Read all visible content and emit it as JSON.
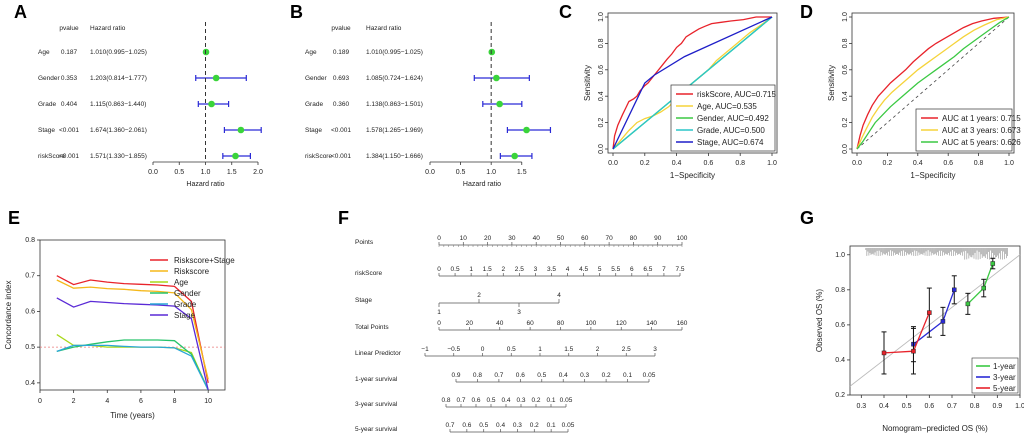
{
  "panel_letters": [
    "A",
    "B",
    "C",
    "D",
    "E",
    "F",
    "G"
  ],
  "chart_data": [
    {
      "id": "A",
      "type": "forest",
      "header_p": "pvalue",
      "header_hr": "Hazard ratio",
      "xlabel": "Hazard ratio",
      "xlim": [
        0,
        2.0
      ],
      "ticks": [
        "0.0",
        "0.5",
        "1.0",
        "1.5",
        "2.0"
      ],
      "rows": [
        {
          "label": "Age",
          "p": "0.187",
          "text": "1.010(0.995−1.025)",
          "hr": 1.01,
          "lo": 0.995,
          "hi": 1.025
        },
        {
          "label": "Gender",
          "p": "0.353",
          "text": "1.203(0.814−1.777)",
          "hr": 1.203,
          "lo": 0.814,
          "hi": 1.777
        },
        {
          "label": "Grade",
          "p": "0.404",
          "text": "1.115(0.863−1.440)",
          "hr": 1.115,
          "lo": 0.863,
          "hi": 1.44
        },
        {
          "label": "Stage",
          "p": "<0.001",
          "text": "1.674(1.360−2.061)",
          "hr": 1.674,
          "lo": 1.36,
          "hi": 2.061
        },
        {
          "label": "riskScore",
          "p": "<0.001",
          "text": "1.571(1.330−1.855)",
          "hr": 1.571,
          "lo": 1.33,
          "hi": 1.855
        }
      ]
    },
    {
      "id": "B",
      "type": "forest",
      "header_p": "pvalue",
      "header_hr": "Hazard ratio",
      "xlabel": "Hazard ratio",
      "xlim": [
        0,
        1.7
      ],
      "ticks": [
        "0.0",
        "0.5",
        "1.0",
        "1.5"
      ],
      "rows": [
        {
          "label": "Age",
          "p": "0.189",
          "text": "1.010(0.995−1.025)",
          "hr": 1.01,
          "lo": 0.995,
          "hi": 1.025
        },
        {
          "label": "Gender",
          "p": "0.693",
          "text": "1.085(0.724−1.624)",
          "hr": 1.085,
          "lo": 0.724,
          "hi": 1.624
        },
        {
          "label": "Grade",
          "p": "0.360",
          "text": "1.138(0.863−1.501)",
          "hr": 1.138,
          "lo": 0.863,
          "hi": 1.501
        },
        {
          "label": "Stage",
          "p": "<0.001",
          "text": "1.578(1.265−1.969)",
          "hr": 1.578,
          "lo": 1.265,
          "hi": 1.969
        },
        {
          "label": "riskScore",
          "p": "<0.001",
          "text": "1.384(1.150−1.666)",
          "hr": 1.384,
          "lo": 1.15,
          "hi": 1.666
        }
      ]
    },
    {
      "id": "C",
      "type": "line",
      "subtype": "roc",
      "xlabel": "1−Specificity",
      "ylabel": "Sensitivity",
      "xlim": [
        0,
        1
      ],
      "ylim": [
        0,
        1
      ],
      "ticks": [
        "0.0",
        "0.2",
        "0.4",
        "0.6",
        "0.8",
        "1.0"
      ],
      "legend_position": "bottom-right",
      "series": [
        {
          "name": "riskScore, AUC=0.715",
          "color": "#e8232b",
          "points": [
            [
              0,
              0
            ],
            [
              0.01,
              0.1
            ],
            [
              0.03,
              0.18
            ],
            [
              0.06,
              0.26
            ],
            [
              0.08,
              0.31
            ],
            [
              0.1,
              0.36
            ],
            [
              0.13,
              0.38
            ],
            [
              0.15,
              0.4
            ],
            [
              0.17,
              0.44
            ],
            [
              0.2,
              0.48
            ],
            [
              0.22,
              0.5
            ],
            [
              0.26,
              0.56
            ],
            [
              0.3,
              0.62
            ],
            [
              0.34,
              0.68
            ],
            [
              0.37,
              0.72
            ],
            [
              0.4,
              0.77
            ],
            [
              0.43,
              0.8
            ],
            [
              0.46,
              0.85
            ],
            [
              0.5,
              0.88
            ],
            [
              0.54,
              0.91
            ],
            [
              0.58,
              0.93
            ],
            [
              0.62,
              0.95
            ],
            [
              0.68,
              0.96
            ],
            [
              0.74,
              0.97
            ],
            [
              0.82,
              0.98
            ],
            [
              0.9,
              1.0
            ],
            [
              1,
              1
            ]
          ]
        },
        {
          "name": "Age, AUC=0.535",
          "color": "#f5d33a",
          "points": [
            [
              0,
              0
            ],
            [
              0.05,
              0.07
            ],
            [
              0.1,
              0.14
            ],
            [
              0.15,
              0.2
            ],
            [
              0.2,
              0.23
            ],
            [
              0.25,
              0.25
            ],
            [
              0.3,
              0.28
            ],
            [
              0.35,
              0.32
            ],
            [
              0.4,
              0.38
            ],
            [
              0.45,
              0.45
            ],
            [
              0.5,
              0.5
            ],
            [
              0.55,
              0.55
            ],
            [
              0.6,
              0.6
            ],
            [
              0.65,
              0.67
            ],
            [
              0.7,
              0.72
            ],
            [
              0.75,
              0.77
            ],
            [
              0.8,
              0.82
            ],
            [
              0.86,
              0.88
            ],
            [
              0.92,
              0.93
            ],
            [
              1,
              1
            ]
          ]
        },
        {
          "name": "Gender, AUC=0.492",
          "color": "#3bc943",
          "points": [
            [
              0,
              0
            ],
            [
              1,
              1
            ]
          ]
        },
        {
          "name": "Grade, AUC=0.500",
          "color": "#2bc6c9",
          "points": [
            [
              0,
              0
            ],
            [
              1,
              1
            ]
          ]
        },
        {
          "name": "Stage, AUC=0.674",
          "color": "#1e1ec8",
          "points": [
            [
              0,
              0
            ],
            [
              0.2,
              0.5
            ],
            [
              0.26,
              0.56
            ],
            [
              0.45,
              0.7
            ],
            [
              1,
              1
            ]
          ]
        }
      ]
    },
    {
      "id": "D",
      "type": "line",
      "subtype": "roc",
      "xlabel": "1−Specificity",
      "ylabel": "Sensitivity",
      "xlim": [
        0,
        1
      ],
      "ylim": [
        0,
        1
      ],
      "ticks": [
        "0.0",
        "0.2",
        "0.4",
        "0.6",
        "0.8",
        "1.0"
      ],
      "legend_position": "bottom-right",
      "series": [
        {
          "name": "AUC at 1 years: 0.715",
          "color": "#e8232b",
          "points": [
            [
              0,
              0
            ],
            [
              0.02,
              0.1
            ],
            [
              0.04,
              0.18
            ],
            [
              0.07,
              0.26
            ],
            [
              0.1,
              0.33
            ],
            [
              0.14,
              0.4
            ],
            [
              0.18,
              0.45
            ],
            [
              0.22,
              0.5
            ],
            [
              0.27,
              0.55
            ],
            [
              0.32,
              0.6
            ],
            [
              0.37,
              0.66
            ],
            [
              0.42,
              0.71
            ],
            [
              0.47,
              0.76
            ],
            [
              0.52,
              0.8
            ],
            [
              0.58,
              0.84
            ],
            [
              0.64,
              0.88
            ],
            [
              0.7,
              0.92
            ],
            [
              0.76,
              0.95
            ],
            [
              0.82,
              0.97
            ],
            [
              0.9,
              0.99
            ],
            [
              1,
              1
            ]
          ]
        },
        {
          "name": "AUC at 3 years: 0.673",
          "color": "#f5d33a",
          "points": [
            [
              0,
              0
            ],
            [
              0.03,
              0.08
            ],
            [
              0.06,
              0.15
            ],
            [
              0.1,
              0.24
            ],
            [
              0.14,
              0.31
            ],
            [
              0.18,
              0.37
            ],
            [
              0.23,
              0.43
            ],
            [
              0.28,
              0.48
            ],
            [
              0.34,
              0.54
            ],
            [
              0.4,
              0.6
            ],
            [
              0.46,
              0.65
            ],
            [
              0.52,
              0.7
            ],
            [
              0.58,
              0.75
            ],
            [
              0.64,
              0.8
            ],
            [
              0.7,
              0.85
            ],
            [
              0.77,
              0.9
            ],
            [
              0.84,
              0.94
            ],
            [
              0.92,
              0.98
            ],
            [
              1,
              1
            ]
          ]
        },
        {
          "name": "AUC at 5 years: 0.626",
          "color": "#3bc943",
          "points": [
            [
              0,
              0
            ],
            [
              0.04,
              0.06
            ],
            [
              0.08,
              0.13
            ],
            [
              0.12,
              0.2
            ],
            [
              0.17,
              0.26
            ],
            [
              0.22,
              0.32
            ],
            [
              0.28,
              0.38
            ],
            [
              0.34,
              0.44
            ],
            [
              0.4,
              0.5
            ],
            [
              0.46,
              0.55
            ],
            [
              0.52,
              0.6
            ],
            [
              0.58,
              0.65
            ],
            [
              0.64,
              0.7
            ],
            [
              0.7,
              0.76
            ],
            [
              0.76,
              0.81
            ],
            [
              0.82,
              0.86
            ],
            [
              0.88,
              0.91
            ],
            [
              0.94,
              0.96
            ],
            [
              1,
              1
            ]
          ]
        }
      ]
    },
    {
      "id": "E",
      "type": "line",
      "subtype": "concordance",
      "xlabel": "Time (years)",
      "ylabel": "Concordance index",
      "xlim": [
        0,
        11
      ],
      "ylim": [
        0.38,
        0.8
      ],
      "xticks": [
        "0",
        "2",
        "4",
        "6",
        "8",
        "10"
      ],
      "yticks": [
        "0.4",
        "0.5",
        "0.6",
        "0.7",
        "0.8"
      ],
      "reference_line": 0.5,
      "legend_position": "top-right",
      "series": [
        {
          "name": "Riskscore+Stage",
          "color": "#e8232b",
          "x": [
            1,
            2,
            3,
            4,
            5,
            6,
            7,
            8,
            9,
            10
          ],
          "y": [
            0.7,
            0.675,
            0.688,
            0.682,
            0.678,
            0.676,
            0.674,
            0.67,
            0.628,
            0.4
          ]
        },
        {
          "name": "Riskscore",
          "color": "#f5b81a",
          "x": [
            1,
            2,
            3,
            4,
            5,
            6,
            7,
            8,
            9,
            10
          ],
          "y": [
            0.688,
            0.665,
            0.668,
            0.664,
            0.662,
            0.658,
            0.656,
            0.652,
            0.605,
            0.41
          ]
        },
        {
          "name": "Age",
          "color": "#a8d81a",
          "x": [
            1,
            2,
            3,
            4,
            5,
            6,
            7,
            8,
            9,
            10
          ],
          "y": [
            0.535,
            0.505,
            0.505,
            0.5,
            0.5,
            0.5,
            0.5,
            0.498,
            0.485,
            0.38
          ]
        },
        {
          "name": "Gender",
          "color": "#27c36b",
          "x": [
            1,
            2,
            3,
            4,
            5,
            6,
            7,
            8,
            9,
            10
          ],
          "y": [
            0.488,
            0.5,
            0.508,
            0.515,
            0.52,
            0.52,
            0.52,
            0.518,
            0.48,
            0.38
          ]
        },
        {
          "name": "Grade",
          "color": "#2aa7d6",
          "x": [
            1,
            2,
            3,
            4,
            5,
            6,
            7,
            8,
            9,
            10
          ],
          "y": [
            0.488,
            0.505,
            0.505,
            0.505,
            0.502,
            0.5,
            0.5,
            0.498,
            0.475,
            0.38
          ]
        },
        {
          "name": "Stage",
          "color": "#5a2ad6",
          "x": [
            1,
            2,
            3,
            4,
            5,
            6,
            7,
            8,
            9,
            10
          ],
          "y": [
            0.638,
            0.612,
            0.628,
            0.625,
            0.622,
            0.62,
            0.618,
            0.615,
            0.58,
            0.38
          ]
        }
      ]
    },
    {
      "id": "F",
      "type": "table",
      "subtype": "nomogram",
      "rows": [
        {
          "label": "Points",
          "ticks": [
            "0",
            "10",
            "20",
            "30",
            "40",
            "50",
            "60",
            "70",
            "80",
            "90",
            "100"
          ]
        },
        {
          "label": "riskScore",
          "ticks": [
            "0",
            "0.5",
            "1",
            "1.5",
            "2",
            "2.5",
            "3",
            "3.5",
            "4",
            "4.5",
            "5",
            "5.5",
            "6",
            "6.5",
            "7",
            "7.5"
          ]
        },
        {
          "label": "Stage",
          "ticks": [
            "1",
            "2",
            "3",
            "4"
          ]
        },
        {
          "label": "Total Points",
          "ticks": [
            "0",
            "20",
            "40",
            "60",
            "80",
            "100",
            "120",
            "140",
            "160"
          ]
        },
        {
          "label": "Linear Predictor",
          "ticks": [
            "−1",
            "−0.5",
            "0",
            "0.5",
            "1",
            "1.5",
            "2",
            "2.5",
            "3"
          ]
        },
        {
          "label": "1-year survival",
          "ticks": [
            "0.9",
            "0.8",
            "0.7",
            "0.6",
            "0.5",
            "0.4",
            "0.3",
            "0.2",
            "0.1",
            "0.05"
          ]
        },
        {
          "label": "3-year survival",
          "ticks": [
            "0.8",
            "0.7",
            "0.6",
            "0.5",
            "0.4",
            "0.3",
            "0.2",
            "0.1",
            "0.05"
          ]
        },
        {
          "label": "5-year survival",
          "ticks": [
            "0.7",
            "0.6",
            "0.5",
            "0.4",
            "0.3",
            "0.2",
            "0.1",
            "0.05"
          ]
        }
      ]
    },
    {
      "id": "G",
      "type": "line",
      "subtype": "calibration",
      "xlabel": "Nomogram−predicted OS (%)",
      "ylabel": "Observed OS (%)",
      "xlim": [
        0.25,
        1.0
      ],
      "ylim": [
        0.2,
        1.05
      ],
      "xticks": [
        "0.3",
        "0.4",
        "0.5",
        "0.6",
        "0.7",
        "0.8",
        "0.9",
        "1.0"
      ],
      "yticks": [
        "0.2",
        "0.4",
        "0.6",
        "0.8",
        "1.0"
      ],
      "legend_position": "bottom-right",
      "series": [
        {
          "name": "1-year",
          "color": "#3bc943",
          "points": [
            [
              0.77,
              0.72
            ],
            [
              0.84,
              0.81
            ],
            [
              0.88,
              0.95
            ]
          ],
          "err": [
            0.06,
            0.05,
            0.03
          ]
        },
        {
          "name": "3-year",
          "color": "#2a2ad6",
          "points": [
            [
              0.53,
              0.49
            ],
            [
              0.66,
              0.62
            ],
            [
              0.71,
              0.8
            ]
          ],
          "err": [
            0.1,
            0.08,
            0.08
          ]
        },
        {
          "name": "5-year",
          "color": "#e8232b",
          "points": [
            [
              0.4,
              0.44
            ],
            [
              0.53,
              0.45
            ],
            [
              0.6,
              0.67
            ]
          ],
          "err": [
            0.12,
            0.13,
            0.14
          ]
        }
      ]
    }
  ]
}
